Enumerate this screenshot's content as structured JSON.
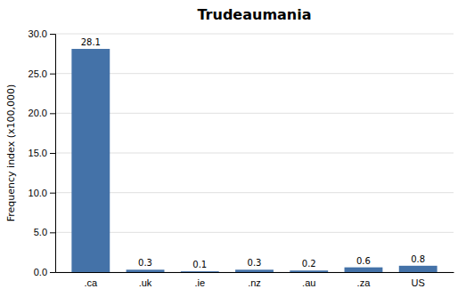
{
  "chart_data": {
    "type": "bar",
    "title": "Trudeaumania",
    "categories": [
      ".ca",
      ".uk",
      ".ie",
      ".nz",
      ".au",
      ".za",
      "US"
    ],
    "values": [
      28.1,
      0.3,
      0.1,
      0.3,
      0.2,
      0.6,
      0.8
    ],
    "color": "#4472a8",
    "ylabel": "Frequency index (x100,000)",
    "ylim": [
      0,
      30
    ],
    "yticks": [
      {
        "value": 0.0,
        "label": "0.0"
      },
      {
        "value": 5.0,
        "label": "5.0"
      },
      {
        "value": 10.0,
        "label": "10.0"
      },
      {
        "value": 15.0,
        "label": "15.0"
      },
      {
        "value": 20.0,
        "label": "20.0"
      },
      {
        "value": 25.0,
        "label": "25.0"
      },
      {
        "value": 30.0,
        "label": "30.0"
      }
    ],
    "grid": true,
    "data_labels": true
  }
}
